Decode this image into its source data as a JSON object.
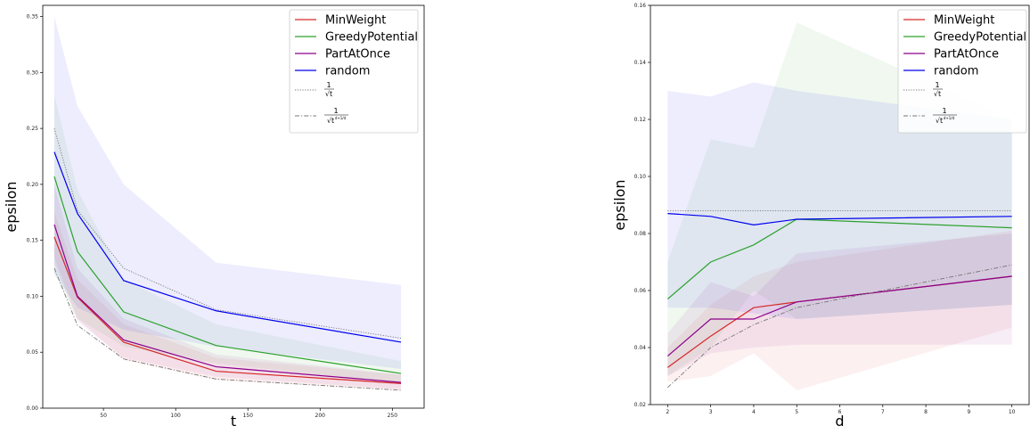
{
  "chart_data": [
    {
      "type": "line",
      "xlabel": "t",
      "ylabel": "epsilon",
      "xlim": [
        8,
        272
      ],
      "ylim": [
        0.0,
        0.36
      ],
      "xticks": [
        50,
        100,
        150,
        200,
        250
      ],
      "yticks": [
        0.0,
        0.05,
        0.1,
        0.15,
        0.2,
        0.25,
        0.3,
        0.35
      ],
      "xtick_labels": [
        "50",
        "100",
        "150",
        "200",
        "250"
      ],
      "ytick_labels": [
        "0.00",
        "0.05",
        "0.10",
        "0.15",
        "0.20",
        "0.25",
        "0.30",
        "0.35"
      ],
      "grid": false,
      "legend_position": "top-right",
      "x": [
        16,
        32,
        64,
        128,
        256
      ],
      "series": [
        {
          "name": "MinWeight",
          "color": "#d62728",
          "style": "solid",
          "values": [
            0.153,
            0.099,
            0.059,
            0.033,
            0.022
          ],
          "lower": [
            0.135,
            0.08,
            0.043,
            0.025,
            0.016
          ],
          "upper": [
            0.175,
            0.115,
            0.075,
            0.045,
            0.03
          ]
        },
        {
          "name": "GreedyPotential",
          "color": "#2ca02c",
          "style": "solid",
          "values": [
            0.207,
            0.14,
            0.086,
            0.056,
            0.031
          ],
          "lower": [
            0.12,
            0.08,
            0.055,
            0.04,
            0.022
          ],
          "upper": [
            0.28,
            0.195,
            0.115,
            0.075,
            0.042
          ]
        },
        {
          "name": "PartAtOnce",
          "color": "#8b008b",
          "style": "solid",
          "values": [
            0.164,
            0.1,
            0.061,
            0.037,
            0.023
          ],
          "lower": [
            0.13,
            0.078,
            0.045,
            0.028,
            0.017
          ],
          "upper": [
            0.2,
            0.125,
            0.08,
            0.048,
            0.03
          ]
        },
        {
          "name": "random",
          "color": "#0000ee",
          "style": "solid",
          "values": [
            0.229,
            0.174,
            0.114,
            0.087,
            0.059
          ],
          "lower": [
            0.12,
            0.09,
            0.07,
            0.055,
            0.035
          ],
          "upper": [
            0.35,
            0.27,
            0.2,
            0.13,
            0.11
          ]
        },
        {
          "name": "1/√t",
          "color": "#777777",
          "style": "dotted",
          "values": [
            0.25,
            0.177,
            0.125,
            0.088,
            0.0625
          ]
        },
        {
          "name": "1/√(t^((d+1)/d))",
          "color": "#777777",
          "style": "dashdot",
          "values": [
            0.125,
            0.074,
            0.044,
            0.026,
            0.016
          ]
        }
      ],
      "legend": [
        "MinWeight",
        "GreedyPotential",
        "PartAtOnce",
        "random"
      ],
      "legend_formula_1": {
        "num": "1",
        "den": "√t"
      },
      "legend_formula_2": {
        "num": "1",
        "den": "√t",
        "exp": "d+1/d"
      }
    },
    {
      "type": "line",
      "xlabel": "d",
      "ylabel": "epsilon",
      "xlim": [
        1.6,
        10.4
      ],
      "ylim": [
        0.02,
        0.16
      ],
      "xticks": [
        2,
        3,
        4,
        5,
        6,
        7,
        8,
        9,
        10
      ],
      "yticks": [
        0.02,
        0.04,
        0.06,
        0.08,
        0.1,
        0.12,
        0.14,
        0.16
      ],
      "xtick_labels": [
        "2",
        "3",
        "4",
        "5",
        "6",
        "7",
        "8",
        "9",
        "10"
      ],
      "ytick_labels": [
        "0.02",
        "0.04",
        "0.06",
        "0.08",
        "0.10",
        "0.12",
        "0.14",
        "0.16"
      ],
      "grid": false,
      "legend_position": "top-right",
      "x": [
        2,
        3,
        4,
        5,
        10
      ],
      "series": [
        {
          "name": "MinWeight",
          "color": "#d62728",
          "style": "solid",
          "values": [
            0.033,
            0.044,
            0.054,
            0.056,
            0.065
          ],
          "lower": [
            0.028,
            0.03,
            0.038,
            0.025,
            0.047
          ],
          "upper": [
            0.04,
            0.055,
            0.065,
            0.07,
            0.081
          ]
        },
        {
          "name": "GreedyPotential",
          "color": "#2ca02c",
          "style": "solid",
          "values": [
            0.057,
            0.07,
            0.076,
            0.085,
            0.082
          ],
          "lower": [
            0.03,
            0.04,
            0.06,
            0.05,
            0.055
          ],
          "upper": [
            0.07,
            0.113,
            0.11,
            0.154,
            0.12
          ]
        },
        {
          "name": "PartAtOnce",
          "color": "#8b008b",
          "style": "solid",
          "values": [
            0.037,
            0.05,
            0.05,
            0.056,
            0.065
          ],
          "lower": [
            0.03,
            0.038,
            0.04,
            0.041,
            0.041
          ],
          "upper": [
            0.045,
            0.063,
            0.058,
            0.073,
            0.08
          ]
        },
        {
          "name": "random",
          "color": "#0000ee",
          "style": "solid",
          "values": [
            0.087,
            0.086,
            0.083,
            0.085,
            0.086
          ],
          "lower": [
            0.054,
            0.054,
            0.052,
            0.05,
            0.055
          ],
          "upper": [
            0.13,
            0.128,
            0.133,
            0.13,
            0.12
          ]
        },
        {
          "name": "1/√t",
          "color": "#777777",
          "style": "dotted",
          "values": [
            0.088,
            0.088,
            0.088,
            0.088,
            0.088
          ]
        },
        {
          "name": "1/√(t^((d+1)/d))",
          "color": "#777777",
          "style": "dashdot",
          "values": [
            0.026,
            0.04,
            0.048,
            0.054,
            0.069
          ]
        }
      ],
      "legend": [
        "MinWeight",
        "GreedyPotential",
        "PartAtOnce",
        "random"
      ],
      "legend_formula_1": {
        "num": "1",
        "den": "√t"
      },
      "legend_formula_2": {
        "num": "1",
        "den": "√t",
        "exp": "d+1/d"
      }
    }
  ]
}
